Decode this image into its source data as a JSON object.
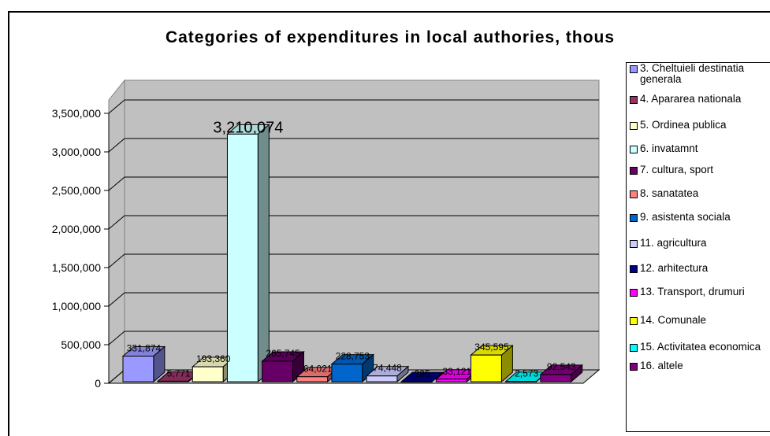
{
  "chart_data": {
    "type": "bar",
    "title": "Categories of expenditures in local authories, thous",
    "ylim": [
      0,
      3500000
    ],
    "y_ticks": [
      "0",
      "500,000",
      "1,000,000",
      "1,500,000",
      "2,000,000",
      "2,500,000",
      "3,000,000",
      "3,500,000"
    ],
    "y_tick_values": [
      0,
      500000,
      1000000,
      1500000,
      2000000,
      2500000,
      3000000,
      3500000
    ],
    "grid": true,
    "legend_position": "right",
    "series": [
      {
        "name": "3. Cheltuieli destinatia generala",
        "value": 331874,
        "label": "331,874",
        "color": "#9999ff"
      },
      {
        "name": "4. Apararea nationala",
        "value": 5771,
        "label": "5,771",
        "color": "#993366"
      },
      {
        "name": "5. Ordinea publica",
        "value": 193360,
        "label": "193,360",
        "color": "#ffffcc"
      },
      {
        "name": "6. invatamnt",
        "value": 3210074,
        "label": "3,210,074",
        "color": "#ccffff"
      },
      {
        "name": "7. cultura, sport",
        "value": 265745,
        "label": "265,745",
        "color": "#660066"
      },
      {
        "name": "8. sanatatea",
        "value": 64021,
        "label": "64,021",
        "color": "#ff8080"
      },
      {
        "name": "9. asistenta sociala",
        "value": 228753,
        "label": "228,753",
        "color": "#0066cc"
      },
      {
        "name": "11. agricultura",
        "value": 74448,
        "label": "74,448",
        "color": "#ccccff"
      },
      {
        "name": "12. arhitectura",
        "value": 295,
        "label": "295",
        "color": "#000080"
      },
      {
        "name": "13. Transport, drumuri",
        "value": 33121,
        "label": "33,121",
        "color": "#ff00ff"
      },
      {
        "name": "14. Comunale",
        "value": 345595,
        "label": "345,595",
        "color": "#ffff00"
      },
      {
        "name": "15. Activitatea economica",
        "value": 2573,
        "label": "2,573",
        "color": "#00ffff"
      },
      {
        "name": "16. altele",
        "value": 92543,
        "label": "92,543",
        "color": "#800080"
      }
    ]
  }
}
